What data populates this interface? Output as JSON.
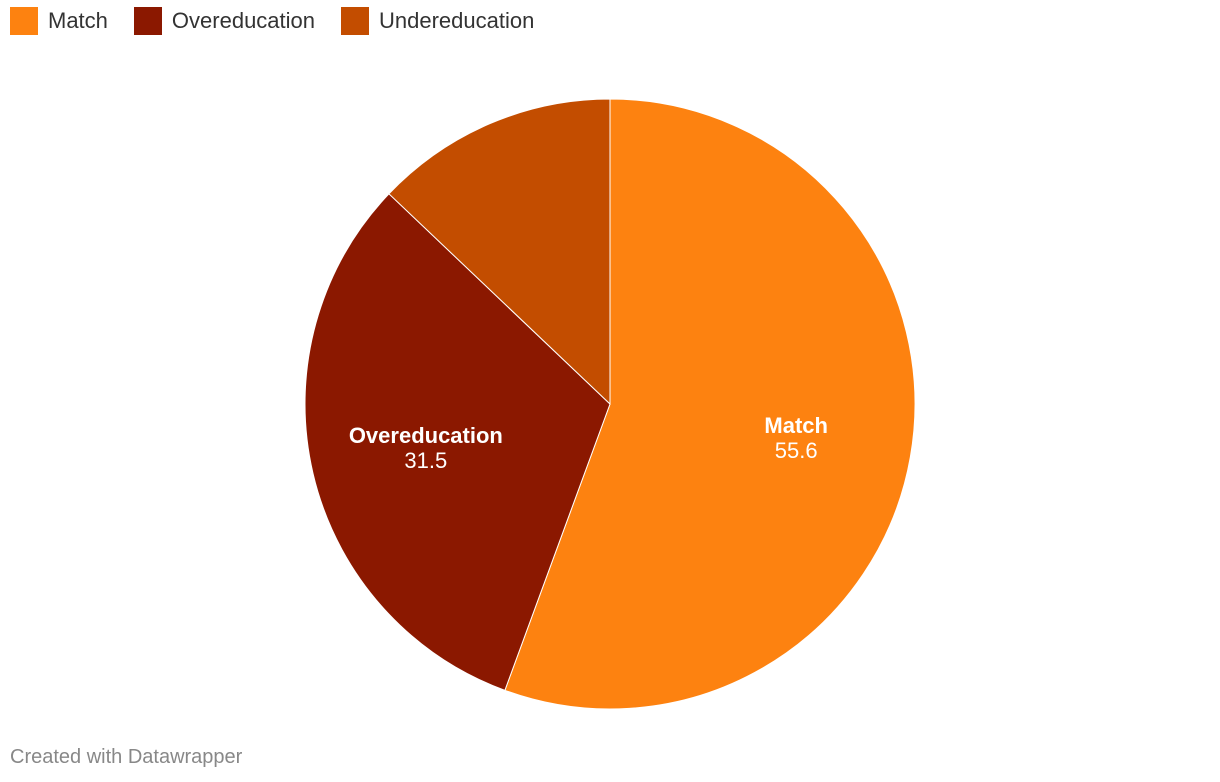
{
  "chart_data": {
    "type": "pie",
    "legend_position": "top-left",
    "slices": [
      {
        "name": "Match",
        "value": 55.6,
        "color": "#fd8210",
        "label_value": "55.6",
        "show_label": true
      },
      {
        "name": "Overeducation",
        "value": 31.5,
        "color": "#8b1800",
        "label_value": "31.5",
        "show_label": true
      },
      {
        "name": "Undereducation",
        "value": 12.9,
        "color": "#c34d00",
        "label_value": "",
        "show_label": false
      }
    ]
  },
  "footer": {
    "credit": "Created with Datawrapper"
  }
}
